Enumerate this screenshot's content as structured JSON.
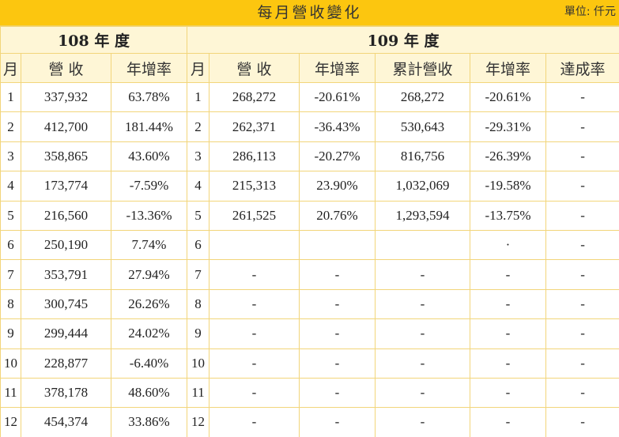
{
  "header": {
    "title": "每月營收變化",
    "unit": "單位: 仟元"
  },
  "years": {
    "y108": "108 年 度",
    "y109": "109 年 度"
  },
  "columns": {
    "y108": [
      "月",
      "營 收",
      "年增率"
    ],
    "y109": [
      "月",
      "營 收",
      "年增率",
      "累計營收",
      "年增率",
      "達成率"
    ]
  },
  "rows": [
    {
      "m108": "1",
      "rev108": "337,932",
      "yoy108": "63.78%",
      "m109": "1",
      "rev109": "268,272",
      "yoy109": "-20.61%",
      "cum109": "268,272",
      "cumyoy109": "-20.61%",
      "achieve": "-"
    },
    {
      "m108": "2",
      "rev108": "412,700",
      "yoy108": "181.44%",
      "m109": "2",
      "rev109": "262,371",
      "yoy109": "-36.43%",
      "cum109": "530,643",
      "cumyoy109": "-29.31%",
      "achieve": "-"
    },
    {
      "m108": "3",
      "rev108": "358,865",
      "yoy108": "43.60%",
      "m109": "3",
      "rev109": "286,113",
      "yoy109": "-20.27%",
      "cum109": "816,756",
      "cumyoy109": "-26.39%",
      "achieve": "-"
    },
    {
      "m108": "4",
      "rev108": "173,774",
      "yoy108": "-7.59%",
      "m109": "4",
      "rev109": "215,313",
      "yoy109": "23.90%",
      "cum109": "1,032,069",
      "cumyoy109": "-19.58%",
      "achieve": "-"
    },
    {
      "m108": "5",
      "rev108": "216,560",
      "yoy108": "-13.36%",
      "m109": "5",
      "rev109": "261,525",
      "yoy109": "20.76%",
      "cum109": "1,293,594",
      "cumyoy109": "-13.75%",
      "achieve": "-"
    },
    {
      "m108": "6",
      "rev108": "250,190",
      "yoy108": "7.74%",
      "m109": "6",
      "rev109": "",
      "yoy109": "",
      "cum109": "",
      "cumyoy109": "·",
      "achieve": "-"
    },
    {
      "m108": "7",
      "rev108": "353,791",
      "yoy108": "27.94%",
      "m109": "7",
      "rev109": "-",
      "yoy109": "-",
      "cum109": "-",
      "cumyoy109": "-",
      "achieve": "-"
    },
    {
      "m108": "8",
      "rev108": "300,745",
      "yoy108": "26.26%",
      "m109": "8",
      "rev109": "-",
      "yoy109": "-",
      "cum109": "-",
      "cumyoy109": "-",
      "achieve": "-"
    },
    {
      "m108": "9",
      "rev108": "299,444",
      "yoy108": "24.02%",
      "m109": "9",
      "rev109": "-",
      "yoy109": "-",
      "cum109": "-",
      "cumyoy109": "-",
      "achieve": "-"
    },
    {
      "m108": "10",
      "rev108": "228,877",
      "yoy108": "-6.40%",
      "m109": "10",
      "rev109": "-",
      "yoy109": "-",
      "cum109": "-",
      "cumyoy109": "-",
      "achieve": "-"
    },
    {
      "m108": "11",
      "rev108": "378,178",
      "yoy108": "48.60%",
      "m109": "11",
      "rev109": "-",
      "yoy109": "-",
      "cum109": "-",
      "cumyoy109": "-",
      "achieve": "-"
    },
    {
      "m108": "12",
      "rev108": "454,374",
      "yoy108": "33.86%",
      "m109": "12",
      "rev109": "-",
      "yoy109": "-",
      "cum109": "-",
      "cumyoy109": "-",
      "achieve": "-"
    }
  ]
}
